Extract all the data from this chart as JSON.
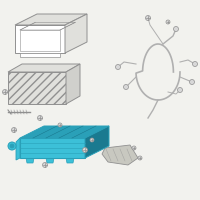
{
  "bg_color": "#f2f2ee",
  "outline_color": "#909090",
  "dark_outline": "#707070",
  "battery_tray_color": "#3cc0d8",
  "battery_tray_dark": "#2aa0b8",
  "battery_tray_darkest": "#1a7a90",
  "wire_color": "#b0b0b0",
  "wire_dark": "#909090",
  "screw_face": "#d8d8d8",
  "screw_edge": "#909090",
  "bracket_color": "#c8c8c0",
  "battery_hatch_color": "#c0c0c0",
  "white": "#ffffff",
  "light_gray": "#e0e0dc"
}
